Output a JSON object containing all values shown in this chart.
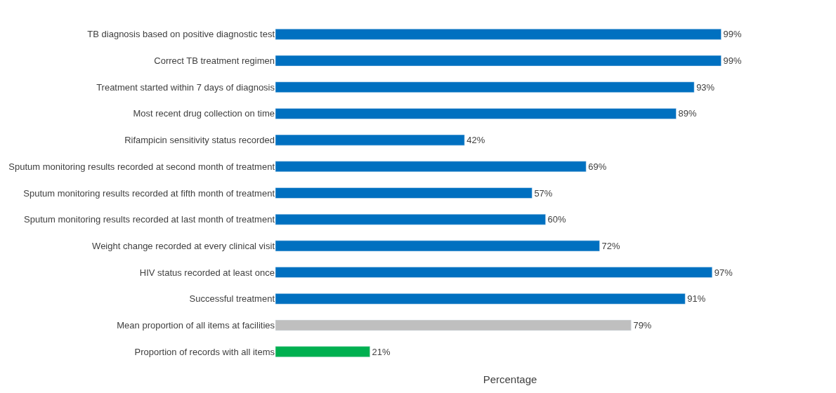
{
  "chart_data": {
    "type": "bar",
    "orientation": "horizontal",
    "xlabel": "Percentage",
    "categories": [
      "TB diagnosis based on positive diagnostic test",
      "Correct TB treatment regimen",
      "Treatment started within 7 days of diagnosis",
      "Most recent drug collection on time",
      "Rifampicin sensitivity status recorded",
      "Sputum monitoring results recorded at second month of treatment",
      "Sputum monitoring results recorded at fifth month of treatment",
      "Sputum monitoring results recorded at last month of treatment",
      "Weight change recorded at every clinical visit",
      "HIV status recorded at least once",
      "Successful treatment",
      "Mean proportion of all items at facilities",
      "Proportion of records with all items"
    ],
    "values": [
      99,
      99,
      93,
      89,
      42,
      69,
      57,
      60,
      72,
      97,
      91,
      79,
      21
    ],
    "colors": [
      "#0070c0",
      "#0070c0",
      "#0070c0",
      "#0070c0",
      "#0070c0",
      "#0070c0",
      "#0070c0",
      "#0070c0",
      "#0070c0",
      "#0070c0",
      "#0070c0",
      "#bfbfbf",
      "#00b050"
    ],
    "value_labels": [
      "99%",
      "99%",
      "93%",
      "89%",
      "42%",
      "69%",
      "57%",
      "60%",
      "72%",
      "97%",
      "91%",
      "79%",
      "21%"
    ]
  }
}
